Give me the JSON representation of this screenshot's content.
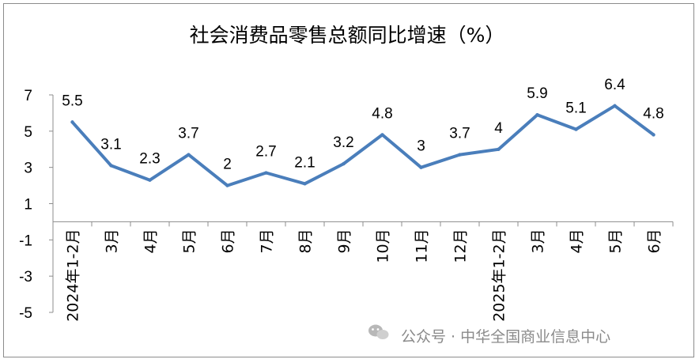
{
  "chart_data": {
    "type": "line",
    "title": "社会消费品零售总额同比增速（%）",
    "categories": [
      "2024年1-2月",
      "3月",
      "4月",
      "5月",
      "6月",
      "7月",
      "8月",
      "9月",
      "10月",
      "11月",
      "12月",
      "2025年1-2月",
      "3月",
      "4月",
      "5月",
      "6月"
    ],
    "series": [
      {
        "values": [
          5.5,
          3.1,
          2.3,
          3.7,
          2,
          2.7,
          2.1,
          3.2,
          4.8,
          3,
          3.7,
          4,
          5.9,
          5.1,
          6.4,
          4.8
        ]
      }
    ],
    "data_labels": [
      "5.5",
      "3.1",
      "2.3",
      "3.7",
      "2",
      "2.7",
      "2.1",
      "3.2",
      "4.8",
      "3",
      "3.7",
      "4",
      "5.9",
      "5.1",
      "6.4",
      "4.8"
    ],
    "yticks": [
      "7",
      "5",
      "3",
      "1",
      "-1",
      "-3",
      "-5"
    ],
    "ylim": [
      -5,
      7
    ],
    "grid": false,
    "legend": "none",
    "colors": {
      "line": "#4a7ebb",
      "axis": "#8c8c8c"
    }
  },
  "watermark": {
    "text": "公众号 · 中华全国商业信息中心",
    "icon": "wechat-icon"
  }
}
